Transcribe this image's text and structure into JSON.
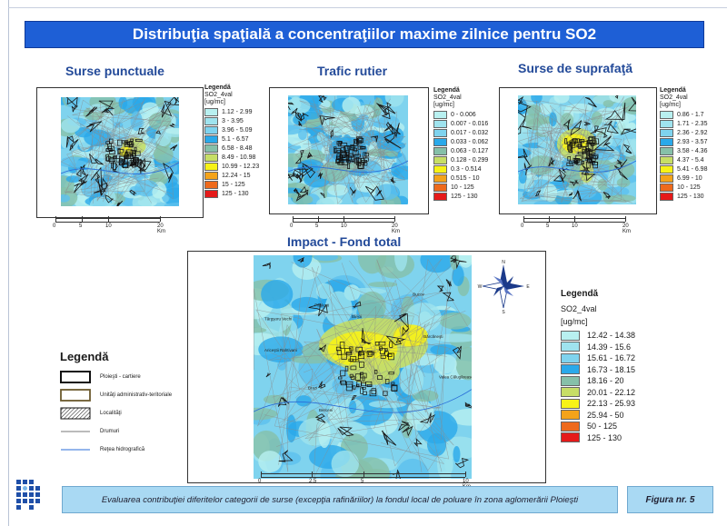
{
  "title": "Distribuţia spaţială a concentraţiilor maxime zilnice pentru SO2",
  "panels": [
    {
      "heading": "Surse punctuale",
      "legend_title": "Legendă",
      "legend_field": "SO2_4val",
      "legend_unit": "[ug/mc]",
      "classes": [
        "1.12 - 2.99",
        "3 - 3.95",
        "3.96 - 5.09",
        "5.1 - 6.57",
        "6.58 - 8.48",
        "8.49 - 10.98",
        "10.99 - 12.23",
        "12.24 - 15",
        "15 - 125",
        "125 - 130"
      ],
      "scale": [
        "0",
        "5",
        "10",
        "20 Km"
      ]
    },
    {
      "heading": "Trafic rutier",
      "legend_title": "Legendă",
      "legend_field": "SO2_4val",
      "legend_unit": "[ug/mc]",
      "classes": [
        "0 - 0.006",
        "0.007 - 0.016",
        "0.017 - 0.032",
        "0.033 - 0.062",
        "0.063 - 0.127",
        "0.128 - 0.299",
        "0.3 - 0.514",
        "0.515 - 10",
        "10 - 125",
        "125 - 130"
      ],
      "scale": [
        "0",
        "5",
        "10",
        "20 Km"
      ]
    },
    {
      "heading": "Surse de suprafaţă",
      "legend_title": "Legendă",
      "legend_field": "SO2_4val",
      "legend_unit": "[ug/mc]",
      "classes": [
        "0.86 - 1.7",
        "1.71 - 2.35",
        "2.36 - 2.92",
        "2.93 - 3.57",
        "3.58 - 4.36",
        "4.37 - 5.4",
        "5.41 - 6.98",
        "6.99 - 10",
        "10 - 125",
        "125 - 130"
      ],
      "scale": [
        "0",
        "5",
        "10",
        "20 Km"
      ]
    }
  ],
  "impact": {
    "heading": "Impact - Fond total",
    "legend_title": "Legendă",
    "legend_field": "SO2_4val",
    "legend_unit": "[ug/mc]",
    "classes": [
      "12.42 - 14.38",
      "14.39 - 15.6",
      "15.61 - 16.72",
      "16.73 - 18.15",
      "18.16 - 20",
      "20.01 - 22.12",
      "22.13 - 25.93",
      "25.94 - 50",
      "50 - 125",
      "125 - 130"
    ],
    "scale": [
      "0",
      "2.5",
      "5",
      "10 Km"
    ],
    "places": [
      "Ploieşti",
      "Bărcăneşti",
      "Blejoi",
      "Păulești",
      "Târgşoru Vechi",
      "Brazi",
      "Ariceştii Rahtivani",
      "Berceni",
      "Bucov",
      "Valea Călugărească"
    ],
    "compass": [
      "N",
      "E",
      "S",
      "W"
    ]
  },
  "class_colors": [
    "#b8f0f0",
    "#9fe3ee",
    "#7fd3ee",
    "#2aa9ea",
    "#86c0a9",
    "#c7de66",
    "#f7f217",
    "#f4a31a",
    "#ee6a1c",
    "#e51a1a"
  ],
  "symbol_legend": {
    "title": "Legendă",
    "items": [
      "Ploieşti - cartiere",
      "Unităţi administrativ-teritoriale",
      "Localităţi",
      "Drumuri",
      "Reţea hidrografică"
    ]
  },
  "footer": "Evaluarea contribuţiei diferitelor categorii de surse (excepţia rafinăriilor) la fondul local de poluare în zona aglomerării Ploieşti",
  "figure_label": "Figura nr. 5",
  "logo_icon": "institution-logo-icon"
}
